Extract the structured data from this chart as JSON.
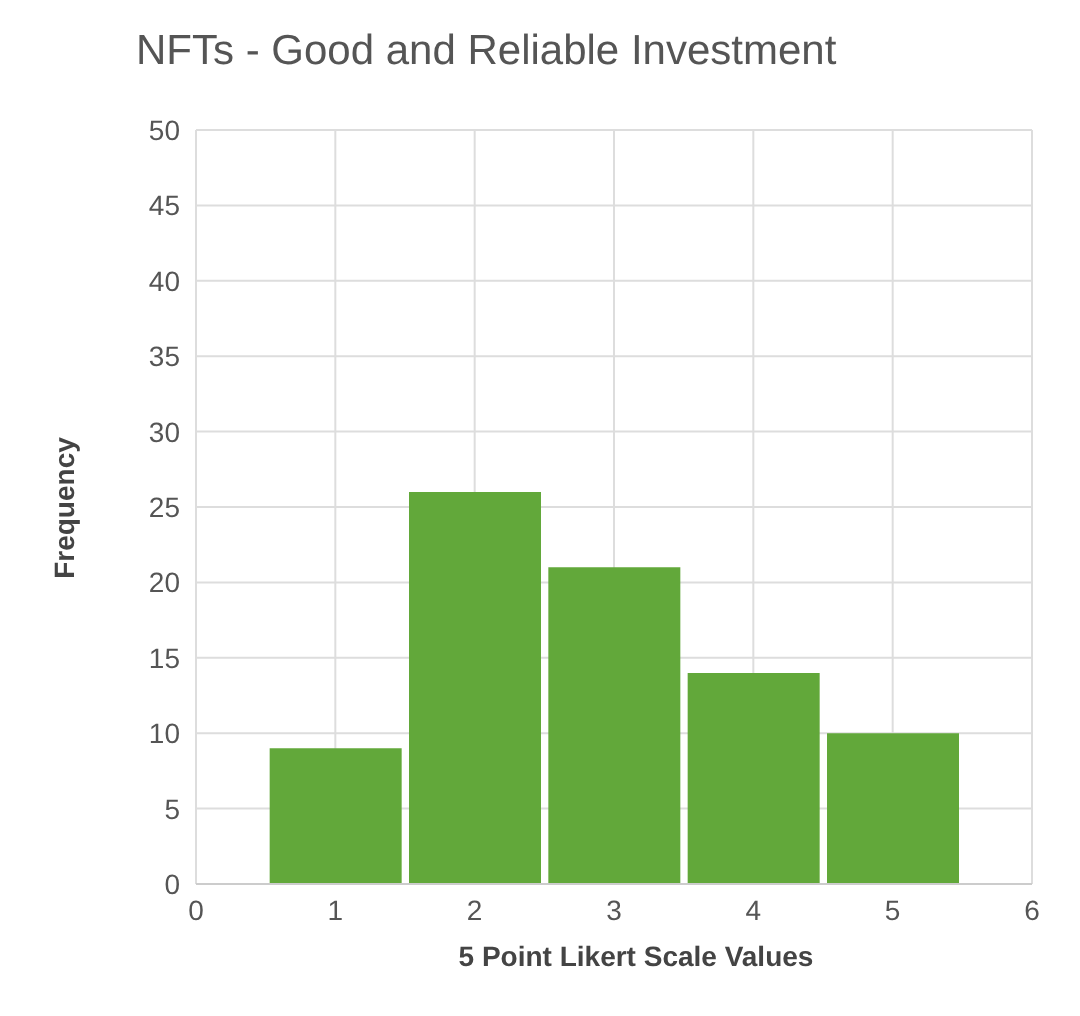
{
  "chart_data": {
    "type": "histogram",
    "title": "NFTs - Good and Reliable Investment",
    "xlabel": "5 Point Likert Scale Values",
    "ylabel": "Frequency",
    "bins": [
      0.5,
      1.5,
      2.5,
      3.5,
      4.5,
      5.5
    ],
    "values": [
      9,
      26,
      21,
      14,
      10
    ],
    "color": "#62a83a",
    "xlim": [
      0,
      6
    ],
    "xticks": [
      0,
      1,
      2,
      3,
      4,
      5,
      6
    ],
    "ylim": [
      0,
      50
    ],
    "yticks": [
      0,
      5,
      10,
      15,
      20,
      25,
      30,
      35,
      40,
      45,
      50
    ],
    "grid": true
  }
}
